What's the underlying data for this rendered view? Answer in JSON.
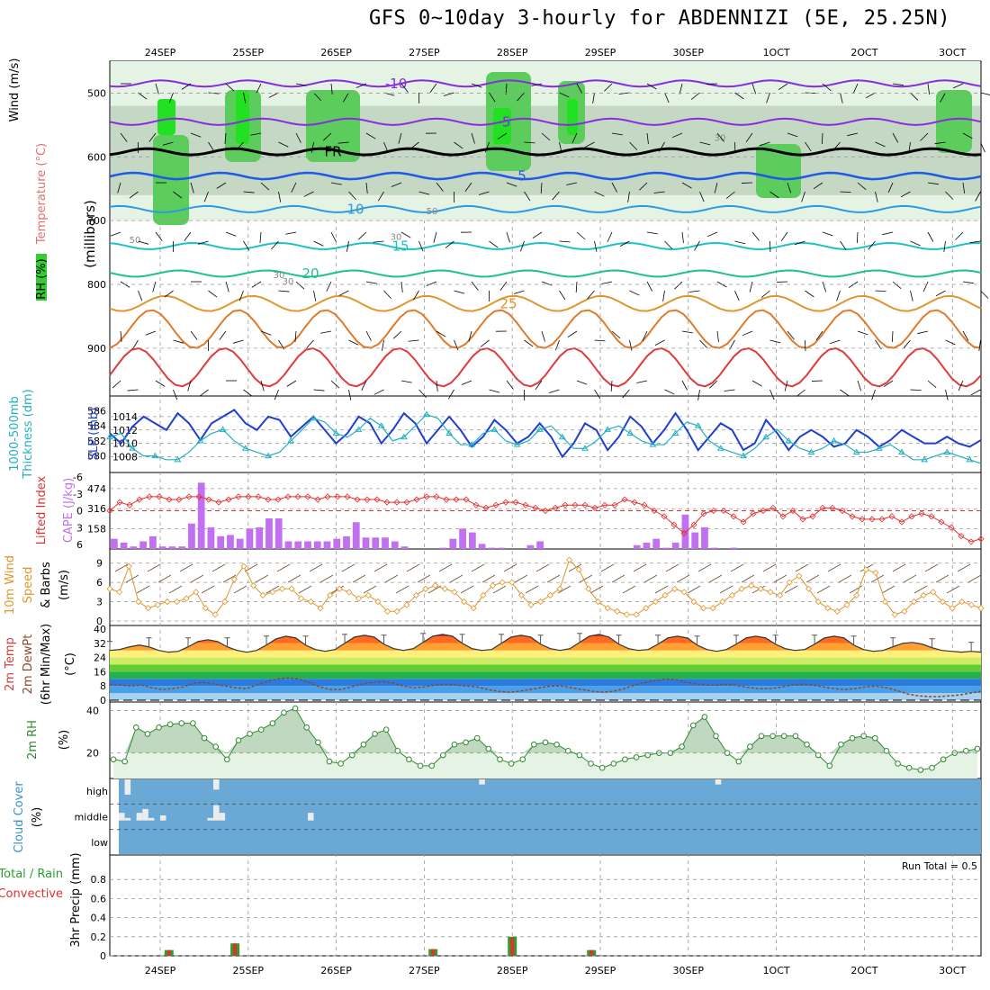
{
  "title": "GFS 0~10day 3-hourly for ABDENNIZI (5E, 25.25N)",
  "colors": {
    "rh_green": "#33cc33",
    "temp_purple": "#8a2be2",
    "temp_blue": "#1e5ae6",
    "slp": "#1f3fd0",
    "thickness": "#22b0c0",
    "lifted": "#e03030",
    "cape": "#c070f0",
    "wind10": "#e0962a",
    "rh2m": "#2e8b2e",
    "cloud_bg": "#6aa9d6",
    "precip_green": "#2ca02c",
    "precip_red": "#e03030"
  },
  "chart_data": [
    {
      "panel": "upper-air",
      "type": "contour",
      "ylabel_wind": "Wind (m/s)",
      "ylabel_temp": "Temperature (°C)",
      "ylabel_rh": "RH (%)",
      "ylabel_p": "(millibars)",
      "y_ticks": [
        "500",
        "600",
        "700",
        "800",
        "900"
      ],
      "temp_contours": [
        {
          "level": "-10",
          "label_x": "27SEP"
        },
        {
          "level": "-5",
          "label_x": "28SEP"
        },
        {
          "level": "FR",
          "label_x": "26SEP"
        },
        {
          "level": "5",
          "label_x": "29SEP"
        },
        {
          "level": "10",
          "label_x": "26SEP"
        },
        {
          "level": "15",
          "label_x": "27SEP"
        },
        {
          "level": "20",
          "label_x": "25SEP"
        },
        {
          "level": "25",
          "label_x": "28SEP"
        }
      ],
      "rh_labels": [
        "30",
        "50",
        "50",
        "30",
        "30",
        "30"
      ]
    },
    {
      "panel": "slp-thickness",
      "type": "line",
      "ylabel_left": "1000-500mb Thickness (dm)",
      "ylabel_right": "SLP (mb)",
      "left_ticks": [
        "580",
        "582",
        "584",
        "586"
      ],
      "right_ticks": [
        "1008",
        "1010",
        "1012",
        "1014"
      ],
      "series": [
        {
          "name": "SLP (mb)",
          "values": [
            1011.5,
            1010,
            1012.5,
            1014,
            1013,
            1012,
            1014.5,
            1013,
            1010.5,
            1013,
            1014,
            1015,
            1013,
            1012,
            1014,
            1013.5,
            1011,
            1012.5,
            1014,
            1012,
            1010,
            1011.5,
            1014,
            1013,
            1010,
            1012,
            1014.5,
            1013,
            1010,
            1012,
            1014,
            1012,
            1009.5,
            1011,
            1013.5,
            1012,
            1010,
            1011,
            1013,
            1011,
            1008,
            1010,
            1013,
            1012,
            1009,
            1011,
            1014,
            1012.5,
            1010,
            1012,
            1014.5,
            1012,
            1009,
            1011,
            1013,
            1012,
            1009,
            1010,
            1013.5,
            1011.5,
            1009,
            1011,
            1012,
            1011,
            1009.5,
            1010,
            1012,
            1011,
            1009.5,
            1010.5,
            1012,
            1011,
            1010,
            1010,
            1011,
            1010,
            1009.5,
            1010.5
          ]
        },
        {
          "name": "Thickness (dm)",
          "values": [
            582.5,
            583,
            581,
            580,
            580,
            579.5,
            579.5,
            580.5,
            582,
            583,
            583.5,
            582,
            581,
            580.5,
            580,
            580.5,
            582,
            583.5,
            585,
            584.5,
            583,
            582.5,
            583.5,
            585,
            584,
            582,
            582.5,
            584,
            585.5,
            585,
            583,
            581.5,
            581.5,
            583,
            583.5,
            582,
            581.5,
            582,
            583.5,
            584,
            582.5,
            581,
            581,
            582,
            583.5,
            584,
            583,
            582,
            581.5,
            581.5,
            583,
            584.5,
            584,
            582,
            581,
            580.5,
            580,
            581,
            582.5,
            583.5,
            582,
            581,
            580.5,
            581,
            582,
            581.5,
            580.5,
            580.5,
            581,
            581.5,
            580.5,
            579.5,
            579.5,
            580,
            580.5,
            580,
            579.5,
            579
          ]
        }
      ]
    },
    {
      "panel": "lifted-cape",
      "type": "bar+line",
      "ylabel_left": "Lifted Index",
      "ylabel_right": "CAPE (J/kg)",
      "left_ticks": [
        "-6",
        "-3",
        "0",
        "3",
        "6"
      ],
      "right_ticks": [
        "158",
        "316",
        "474"
      ],
      "lifted_index": [
        0,
        -1.5,
        -1,
        -2,
        -2.5,
        -2.5,
        -2,
        -2,
        -2.5,
        -2.5,
        -2,
        -1.5,
        -2,
        -2.5,
        -2.5,
        -2.5,
        -2,
        -2,
        -2.5,
        -2.5,
        -2.5,
        -2,
        -2.5,
        -2.5,
        -2.5,
        -2,
        -2,
        -2,
        -1.5,
        -1.5,
        -1.5,
        -2,
        -2.5,
        -2.5,
        -2,
        -2,
        -2,
        -1,
        -0.5,
        -1,
        -1.5,
        -1.5,
        -1,
        -0.5,
        0,
        -0.5,
        -1,
        -1,
        -1,
        -0.5,
        -1,
        -1,
        -2,
        -1.5,
        -1,
        0,
        1,
        2.5,
        4,
        2.5,
        0.5,
        0,
        0,
        1,
        2,
        0.5,
        0,
        -0.5,
        1,
        0,
        1.5,
        1,
        -0.5,
        -0.5,
        0,
        1,
        1.5,
        1.5,
        1.5,
        1,
        2,
        1,
        0.5,
        1,
        2,
        3,
        4.5,
        5.5,
        5
      ],
      "cape": [
        80,
        50,
        20,
        60,
        100,
        20,
        20,
        20,
        200,
        520,
        170,
        100,
        110,
        80,
        160,
        170,
        240,
        240,
        60,
        60,
        60,
        60,
        60,
        80,
        100,
        210,
        90,
        90,
        90,
        60,
        20,
        0,
        0,
        0,
        10,
        80,
        160,
        130,
        40,
        10,
        10,
        0,
        0,
        30,
        60,
        0,
        0,
        0,
        0,
        0,
        0,
        0,
        0,
        0,
        30,
        50,
        80,
        10,
        50,
        270,
        130,
        170,
        10,
        0,
        10,
        0,
        0,
        0,
        0,
        0,
        0,
        0,
        0,
        0,
        0,
        0,
        0,
        0,
        0,
        0,
        0,
        0,
        0,
        0,
        0,
        0,
        0,
        0,
        0,
        0
      ]
    },
    {
      "panel": "wind10m",
      "type": "line",
      "ylabel": "10m Wind Speed & Barbs",
      "unit": "(m/s)",
      "y_ticks": [
        "0",
        "3",
        "6",
        "9"
      ],
      "values": [
        5,
        4.5,
        8.5,
        3,
        2,
        2.5,
        3,
        3,
        3.5,
        4.5,
        2,
        1,
        3,
        6.5,
        8.5,
        5.5,
        4,
        4.5,
        5,
        5,
        3.5,
        3,
        2,
        4,
        5,
        4.5,
        3.5,
        4,
        3,
        1.5,
        1.5,
        2.5,
        4,
        5,
        5.5,
        5,
        4.5,
        3,
        2,
        4,
        5.5,
        6,
        6,
        4,
        2.5,
        3,
        4,
        5,
        9.5,
        8,
        5,
        3,
        2,
        1.5,
        1,
        1,
        2,
        3,
        4,
        5,
        4.5,
        3,
        2,
        2,
        3,
        4,
        5,
        5.5,
        5,
        4.5,
        4,
        6,
        7,
        5,
        3,
        2,
        1.5,
        2.5,
        4,
        8,
        7.5,
        3,
        1,
        1.5,
        3,
        4,
        4.5,
        3,
        2,
        3,
        2.5,
        2
      ]
    },
    {
      "panel": "temp2m",
      "type": "area",
      "ylabel": "2m Temp 2m DewPt (6hr Min/Max)",
      "unit": "(°C)",
      "y_ticks": [
        "0",
        "8",
        "16",
        "24",
        "32",
        "40"
      ],
      "temp": [
        28,
        28.5,
        30,
        31,
        30,
        28,
        27,
        27.5,
        30,
        33,
        34,
        33,
        30,
        28,
        27,
        28,
        31,
        34.5,
        36,
        35,
        31,
        28.5,
        27.5,
        28.5,
        32,
        35.5,
        36.5,
        35.5,
        31.5,
        29,
        28,
        29,
        32.5,
        36,
        37,
        36,
        32,
        29,
        28,
        28.5,
        32,
        35.5,
        36.5,
        35.5,
        31.5,
        29,
        28,
        29,
        32.5,
        36,
        37,
        35.5,
        31.5,
        29,
        28,
        28.5,
        31.5,
        35,
        36,
        35,
        31,
        28.5,
        27.5,
        28.5,
        31.5,
        35,
        36,
        35,
        31.5,
        29,
        28,
        28.5,
        31.5,
        35,
        36,
        35,
        31,
        28.5,
        27.5,
        28,
        30,
        32,
        32.5,
        31.5,
        29.5,
        28,
        27.5,
        27,
        27.5,
        27
      ],
      "dewpt": [
        9,
        8.5,
        8,
        8.5,
        7,
        6,
        6.5,
        7.5,
        9.5,
        10,
        9,
        8,
        7,
        6.5,
        8.5,
        10.5,
        12,
        12.5,
        12,
        10,
        7.5,
        6,
        6,
        7.5,
        9,
        10,
        10.5,
        9.5,
        8,
        7,
        7.5,
        8.5,
        9,
        8.5,
        8,
        7.5,
        6,
        5,
        4.5,
        5,
        6,
        7,
        8,
        8,
        7,
        6,
        5,
        4.5,
        5,
        6.5,
        8.5,
        10,
        11,
        12,
        11.5,
        10,
        9,
        8.5,
        8.5,
        9,
        8,
        7,
        6.5,
        6.5,
        7.5,
        8.5,
        9,
        8.5,
        7.5,
        6.5,
        6,
        6.5,
        7.5,
        8,
        7,
        5.5,
        3.5,
        2.5,
        2,
        2,
        2.5,
        3,
        4,
        5
      ]
    },
    {
      "panel": "rh2m",
      "type": "area",
      "ylabel": "2m RH",
      "unit": "(%)",
      "y_ticks": [
        "20",
        "40"
      ],
      "values": [
        17,
        16,
        32,
        29,
        32,
        33.5,
        34,
        34,
        27,
        23,
        17,
        26,
        29,
        31,
        34,
        39,
        41,
        32,
        25,
        16,
        15,
        19,
        24,
        29,
        31,
        21,
        17,
        14,
        14,
        19,
        24,
        25,
        27,
        22,
        17,
        15,
        17,
        24,
        25,
        24,
        21,
        19,
        15,
        13,
        15,
        17,
        18,
        19,
        20,
        20,
        23,
        33,
        37,
        28,
        20,
        16,
        23,
        28,
        28,
        28,
        28,
        24,
        19,
        14,
        24,
        27,
        28,
        27,
        21,
        15,
        13,
        12,
        13,
        17,
        20,
        21,
        22
      ]
    },
    {
      "panel": "cloud",
      "type": "bar",
      "ylabel": "Cloud Cover",
      "unit": "(%)",
      "y_ticks": [
        "high",
        "middle",
        "low"
      ],
      "high": [
        0,
        60,
        0,
        0,
        0,
        0,
        0,
        0,
        0,
        0,
        0,
        0,
        0,
        0,
        0,
        0,
        40,
        0,
        0,
        0,
        0,
        0,
        0,
        0,
        0,
        0,
        0,
        0,
        0,
        0,
        0,
        0,
        0,
        0,
        0,
        0,
        0,
        0,
        0,
        0,
        0,
        0,
        0,
        0,
        0,
        0,
        0,
        0,
        0,
        0,
        0,
        0,
        0,
        0,
        0,
        0,
        0,
        0,
        0,
        0,
        0,
        20,
        0,
        0,
        0,
        0,
        0,
        0,
        0,
        0,
        0,
        0,
        0,
        0,
        0,
        0,
        0,
        0,
        0,
        0,
        0,
        0,
        0,
        0,
        0,
        0,
        0,
        0,
        0,
        0,
        0,
        0,
        0,
        0,
        0,
        0,
        0,
        0,
        0,
        0,
        0,
        20,
        0,
        0,
        0,
        0,
        0,
        0,
        0,
        0,
        0,
        0,
        0,
        0,
        0,
        0,
        0,
        0,
        0,
        0,
        0,
        0,
        0,
        0,
        0,
        0,
        0,
        0,
        0,
        0,
        0,
        0,
        0,
        0,
        0,
        0,
        0,
        0,
        0,
        0,
        0,
        0,
        0,
        0,
        0,
        0
      ],
      "middle": [
        30,
        10,
        0,
        30,
        45,
        10,
        0,
        20,
        0,
        0,
        0,
        0,
        0,
        0,
        0,
        10,
        60,
        30,
        0,
        0,
        0,
        0,
        0,
        0,
        0,
        0,
        0,
        0,
        0,
        0,
        0,
        0,
        30,
        0,
        0,
        0,
        0,
        0,
        0,
        0,
        0,
        0,
        0,
        0,
        0,
        0,
        0,
        0,
        0,
        0,
        0,
        0,
        0,
        0,
        0,
        0,
        0,
        0,
        0,
        0,
        0,
        0,
        0,
        0,
        0,
        0,
        0,
        0,
        0,
        0,
        0,
        0,
        0,
        0,
        0,
        0,
        0,
        0,
        0,
        0,
        0,
        0,
        0,
        0,
        0,
        0,
        0,
        0,
        0,
        0,
        0,
        0,
        0,
        0,
        0,
        0,
        0,
        0,
        0,
        0,
        0,
        0,
        0,
        0,
        0,
        0,
        0,
        0,
        0,
        0,
        0,
        0,
        0,
        0,
        0,
        0,
        0,
        0,
        0,
        0,
        0,
        0,
        0,
        0,
        0,
        0,
        0,
        0,
        0,
        0,
        0,
        0,
        0,
        0,
        0,
        0,
        0,
        0,
        0,
        0,
        0,
        0,
        0,
        0,
        0,
        0
      ]
    },
    {
      "panel": "precip",
      "type": "bar",
      "ylabel": "3hr Precip (mm)",
      "legend_total_rain": "Total / Rain",
      "legend_convective": "Convective",
      "run_total": "Run Total = 0.5",
      "y_ticks": [
        "0",
        "0.2",
        "0.4",
        "0.6",
        "0.8"
      ],
      "bars": [
        {
          "day": 0.1,
          "total": 0.06,
          "convective": 0.06
        },
        {
          "day": 0.85,
          "total": 0.13,
          "convective": 0.13
        },
        {
          "day": 3.1,
          "total": 0.07,
          "convective": 0.07
        },
        {
          "day": 4.0,
          "total": 0.2,
          "convective": 0.19
        },
        {
          "day": 4.9,
          "total": 0.06,
          "convective": 0.06
        }
      ]
    }
  ],
  "x_ticks": [
    "24SEP",
    "25SEP",
    "26SEP",
    "27SEP",
    "28SEP",
    "29SEP",
    "30SEP",
    "1OCT",
    "2OCT",
    "3OCT"
  ]
}
